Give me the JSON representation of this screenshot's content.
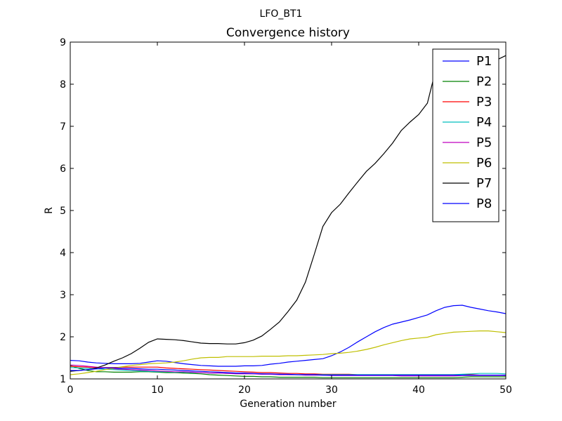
{
  "figure": {
    "suptitle": "LFO_BT1"
  },
  "chart_data": {
    "type": "line",
    "title": "Convergence history",
    "xlabel": "Generation number",
    "ylabel": "R",
    "xlim": [
      0,
      50
    ],
    "ylim": [
      1,
      9
    ],
    "xticks": [
      "0",
      "10",
      "20",
      "30",
      "40",
      "50"
    ],
    "yticks": [
      "1",
      "2",
      "3",
      "4",
      "5",
      "6",
      "7",
      "8",
      "9"
    ],
    "grid": false,
    "legend_position": "top-right",
    "x": [
      0,
      1,
      2,
      3,
      4,
      5,
      6,
      7,
      8,
      9,
      10,
      11,
      12,
      13,
      14,
      15,
      16,
      17,
      18,
      19,
      20,
      21,
      22,
      23,
      24,
      25,
      26,
      27,
      28,
      29,
      30,
      31,
      32,
      33,
      34,
      35,
      36,
      37,
      38,
      39,
      40,
      41,
      42,
      43,
      44,
      45,
      46,
      47,
      48,
      49,
      50
    ],
    "series": [
      {
        "name": "P1",
        "color": "#0000ff",
        "values": [
          1.44,
          1.43,
          1.4,
          1.38,
          1.37,
          1.36,
          1.36,
          1.36,
          1.37,
          1.4,
          1.43,
          1.42,
          1.39,
          1.36,
          1.34,
          1.32,
          1.31,
          1.3,
          1.3,
          1.3,
          1.31,
          1.31,
          1.32,
          1.35,
          1.37,
          1.4,
          1.42,
          1.44,
          1.46,
          1.48,
          1.55,
          1.64,
          1.75,
          1.88,
          2.0,
          2.12,
          2.22,
          2.3,
          2.35,
          2.4,
          2.46,
          2.52,
          2.62,
          2.7,
          2.74,
          2.75,
          2.7,
          2.66,
          2.62,
          2.59,
          2.55
        ]
      },
      {
        "name": "P2",
        "color": "#008000",
        "values": [
          1.32,
          1.25,
          1.2,
          1.17,
          1.17,
          1.16,
          1.16,
          1.16,
          1.17,
          1.17,
          1.16,
          1.15,
          1.15,
          1.14,
          1.13,
          1.12,
          1.1,
          1.09,
          1.08,
          1.07,
          1.06,
          1.06,
          1.05,
          1.05,
          1.04,
          1.04,
          1.04,
          1.04,
          1.04,
          1.03,
          1.03,
          1.03,
          1.03,
          1.03,
          1.03,
          1.03,
          1.03,
          1.03,
          1.03,
          1.03,
          1.03,
          1.03,
          1.03,
          1.03,
          1.03,
          1.04,
          1.05,
          1.05,
          1.05,
          1.05,
          1.05
        ]
      },
      {
        "name": "P3",
        "color": "#ff0000",
        "values": [
          1.3,
          1.29,
          1.28,
          1.27,
          1.27,
          1.27,
          1.28,
          1.28,
          1.28,
          1.28,
          1.28,
          1.26,
          1.25,
          1.24,
          1.23,
          1.22,
          1.21,
          1.2,
          1.19,
          1.18,
          1.17,
          1.16,
          1.15,
          1.15,
          1.14,
          1.13,
          1.13,
          1.12,
          1.12,
          1.11,
          1.11,
          1.11,
          1.11,
          1.1,
          1.1,
          1.1,
          1.1,
          1.1,
          1.1,
          1.1,
          1.1,
          1.1,
          1.1,
          1.1,
          1.1,
          1.1,
          1.1,
          1.09,
          1.09,
          1.09,
          1.08
        ]
      },
      {
        "name": "P4",
        "color": "#00bfbf",
        "values": [
          1.27,
          1.26,
          1.25,
          1.24,
          1.23,
          1.22,
          1.21,
          1.2,
          1.19,
          1.18,
          1.17,
          1.17,
          1.16,
          1.16,
          1.15,
          1.15,
          1.14,
          1.14,
          1.13,
          1.13,
          1.13,
          1.12,
          1.12,
          1.11,
          1.11,
          1.1,
          1.1,
          1.1,
          1.1,
          1.1,
          1.1,
          1.1,
          1.1,
          1.1,
          1.1,
          1.1,
          1.1,
          1.1,
          1.1,
          1.1,
          1.1,
          1.1,
          1.1,
          1.1,
          1.1,
          1.11,
          1.12,
          1.13,
          1.13,
          1.13,
          1.12
        ]
      },
      {
        "name": "P5",
        "color": "#bf00bf",
        "values": [
          1.33,
          1.32,
          1.3,
          1.28,
          1.26,
          1.24,
          1.23,
          1.22,
          1.21,
          1.2,
          1.19,
          1.18,
          1.17,
          1.17,
          1.16,
          1.15,
          1.14,
          1.14,
          1.13,
          1.12,
          1.12,
          1.12,
          1.11,
          1.11,
          1.1,
          1.1,
          1.1,
          1.09,
          1.09,
          1.09,
          1.08,
          1.08,
          1.08,
          1.08,
          1.08,
          1.08,
          1.08,
          1.08,
          1.07,
          1.07,
          1.07,
          1.07,
          1.07,
          1.07,
          1.07,
          1.08,
          1.08,
          1.08,
          1.08,
          1.08,
          1.08
        ]
      },
      {
        "name": "P6",
        "color": "#bfbf00",
        "values": [
          1.1,
          1.12,
          1.15,
          1.18,
          1.22,
          1.25,
          1.29,
          1.32,
          1.34,
          1.36,
          1.37,
          1.38,
          1.4,
          1.43,
          1.47,
          1.5,
          1.51,
          1.51,
          1.53,
          1.53,
          1.53,
          1.53,
          1.54,
          1.54,
          1.54,
          1.55,
          1.55,
          1.56,
          1.57,
          1.58,
          1.6,
          1.61,
          1.63,
          1.66,
          1.7,
          1.75,
          1.81,
          1.86,
          1.91,
          1.95,
          1.97,
          1.99,
          2.05,
          2.08,
          2.11,
          2.12,
          2.13,
          2.14,
          2.14,
          2.12,
          2.1
        ]
      },
      {
        "name": "P7",
        "color": "#000000",
        "values": [
          1.18,
          1.2,
          1.22,
          1.26,
          1.33,
          1.42,
          1.5,
          1.6,
          1.73,
          1.87,
          1.95,
          1.94,
          1.93,
          1.91,
          1.88,
          1.85,
          1.84,
          1.84,
          1.83,
          1.83,
          1.86,
          1.92,
          2.02,
          2.18,
          2.35,
          2.6,
          2.87,
          3.3,
          3.95,
          4.62,
          4.95,
          5.15,
          5.42,
          5.68,
          5.93,
          6.12,
          6.35,
          6.6,
          6.9,
          7.1,
          7.28,
          7.55,
          8.38,
          8.82,
          8.78,
          8.52,
          8.4,
          8.45,
          8.52,
          8.58,
          8.68
        ]
      },
      {
        "name": "P8",
        "color": "#0000ff",
        "values": [
          1.2,
          1.2,
          1.22,
          1.24,
          1.26,
          1.26,
          1.25,
          1.25,
          1.24,
          1.23,
          1.23,
          1.22,
          1.21,
          1.2,
          1.19,
          1.18,
          1.17,
          1.16,
          1.15,
          1.14,
          1.14,
          1.13,
          1.12,
          1.12,
          1.11,
          1.11,
          1.1,
          1.1,
          1.1,
          1.09,
          1.09,
          1.09,
          1.09,
          1.09,
          1.09,
          1.09,
          1.09,
          1.09,
          1.09,
          1.09,
          1.09,
          1.09,
          1.09,
          1.09,
          1.09,
          1.09,
          1.09,
          1.09,
          1.09,
          1.09,
          1.09
        ]
      }
    ]
  }
}
